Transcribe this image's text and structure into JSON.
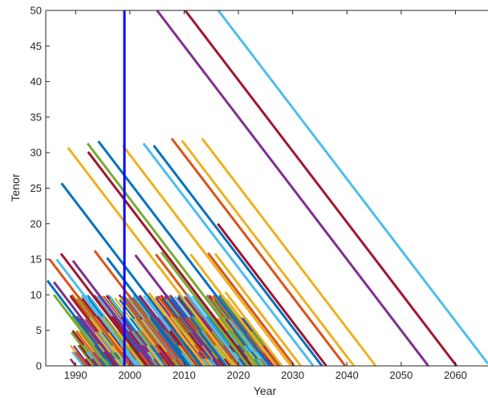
{
  "chart_data": {
    "type": "line",
    "title": "",
    "xlabel": "Year",
    "ylabel": "Tenor",
    "xlim": [
      1984.5,
      2066
    ],
    "ylim": [
      0,
      50
    ],
    "xticks": [
      1990,
      2000,
      2010,
      2020,
      2030,
      2040,
      2050,
      2060
    ],
    "yticks": [
      0,
      5,
      10,
      15,
      20,
      25,
      30,
      35,
      40,
      45,
      50
    ],
    "grid": false,
    "legend": "none",
    "series": [
      {
        "color": "#7E2F8E",
        "values": [
          [
            2005,
            50
          ],
          [
            2055,
            0
          ]
        ]
      },
      {
        "color": "#A2142F",
        "values": [
          [
            2010.2,
            50
          ],
          [
            2060.2,
            0
          ]
        ]
      },
      {
        "color": "#4DBEEE",
        "values": [
          [
            2016.3,
            50
          ],
          [
            2066,
            0.3
          ]
        ]
      },
      {
        "color": "#0072BD",
        "values": [
          [
            1994.2,
            31.6
          ],
          [
            2025.8,
            0
          ]
        ]
      },
      {
        "color": "#77AC30",
        "values": [
          [
            1992.2,
            31.3
          ],
          [
            2023.5,
            0
          ]
        ]
      },
      {
        "color": "#A2142F",
        "values": [
          [
            1992.3,
            30.1
          ],
          [
            2022.4,
            0
          ]
        ]
      },
      {
        "color": "#EDB120",
        "values": [
          [
            1988.6,
            30.7
          ],
          [
            2019.3,
            0
          ]
        ]
      },
      {
        "color": "#EDB120",
        "values": [
          [
            1998.7,
            31.0
          ],
          [
            2029.7,
            0
          ]
        ]
      },
      {
        "color": "#4DBEEE",
        "values": [
          [
            2002.5,
            31.3
          ],
          [
            2033.8,
            0
          ]
        ]
      },
      {
        "color": "#D95319",
        "values": [
          [
            2007.7,
            32.0
          ],
          [
            2039.7,
            0
          ]
        ]
      },
      {
        "color": "#EDB120",
        "values": [
          [
            2009.6,
            31.7
          ],
          [
            2041.3,
            0
          ]
        ]
      },
      {
        "color": "#EDB120",
        "values": [
          [
            2013.3,
            32.0
          ],
          [
            2045.3,
            0
          ]
        ]
      },
      {
        "color": "#0072BD",
        "values": [
          [
            2004.4,
            31.0
          ],
          [
            2035.4,
            0
          ]
        ]
      },
      {
        "color": "#0072BD",
        "values": [
          [
            1987.4,
            25.7
          ],
          [
            2013.1,
            0
          ]
        ]
      },
      {
        "color": "#A2142F",
        "values": [
          [
            2016.2,
            20.0
          ],
          [
            2036.2,
            0
          ]
        ]
      },
      {
        "color": "#A2142F",
        "values": [
          [
            1987.3,
            15.8
          ],
          [
            2003.1,
            0
          ]
        ]
      },
      {
        "color": "#D95319",
        "values": [
          [
            1985.2,
            15.0
          ],
          [
            2000.2,
            0
          ]
        ]
      },
      {
        "color": "#4DBEEE",
        "values": [
          [
            1986.5,
            15.0
          ],
          [
            2001.5,
            0
          ]
        ]
      },
      {
        "color": "#7E2F8E",
        "values": [
          [
            1989.5,
            14.8
          ],
          [
            2004.3,
            0
          ]
        ]
      },
      {
        "color": "#D95319",
        "values": [
          [
            1993.5,
            16.2
          ],
          [
            2009.7,
            0
          ]
        ]
      },
      {
        "color": "#0072BD",
        "values": [
          [
            1995.8,
            15.2
          ],
          [
            2011.0,
            0
          ]
        ]
      },
      {
        "color": "#7E2F8E",
        "values": [
          [
            2001.0,
            15.6
          ],
          [
            2016.6,
            0
          ]
        ]
      },
      {
        "color": "#D95319",
        "values": [
          [
            2004.8,
            15.7
          ],
          [
            2020.5,
            0
          ]
        ]
      },
      {
        "color": "#77AC30",
        "values": [
          [
            2005.8,
            16.0
          ],
          [
            2021.8,
            0
          ]
        ]
      },
      {
        "color": "#EDB120",
        "values": [
          [
            2011.2,
            15.7
          ],
          [
            2026.9,
            0
          ]
        ]
      },
      {
        "color": "#D95319",
        "values": [
          [
            2014.4,
            15.9
          ],
          [
            2030.3,
            0
          ]
        ]
      },
      {
        "color": "#EDB120",
        "values": [
          [
            2015.7,
            15.8
          ],
          [
            2031.5,
            0
          ]
        ]
      },
      {
        "color": "#0072BD",
        "values": [
          [
            1984.8,
            12.0
          ],
          [
            1996.8,
            0
          ]
        ]
      },
      {
        "color": "#7E2F8E",
        "values": [
          [
            1986.0,
            11.8
          ],
          [
            1997.8,
            0
          ]
        ]
      },
      {
        "color": "#77AC30",
        "values": [
          [
            1986.0,
            10.0
          ],
          [
            1996.0,
            0
          ]
        ]
      },
      {
        "color": "#EDB120",
        "values": [
          [
            2003.5,
            10.3
          ],
          [
            2013.8,
            0
          ]
        ]
      },
      {
        "color": "#4DBEEE",
        "values": [
          [
            2010.5,
            10.2
          ],
          [
            2020.7,
            0
          ]
        ]
      },
      {
        "color": "#EDB120",
        "values": [
          [
            2017.6,
            10.4
          ],
          [
            2028.0,
            0
          ]
        ]
      }
    ],
    "vertical_line": {
      "x": 1999,
      "color": "#0000FF"
    },
    "dense_block": {
      "x_start": 1989,
      "x_end": 2028,
      "tenor_levels": [
        10,
        7,
        5,
        3,
        2,
        1
      ]
    }
  }
}
